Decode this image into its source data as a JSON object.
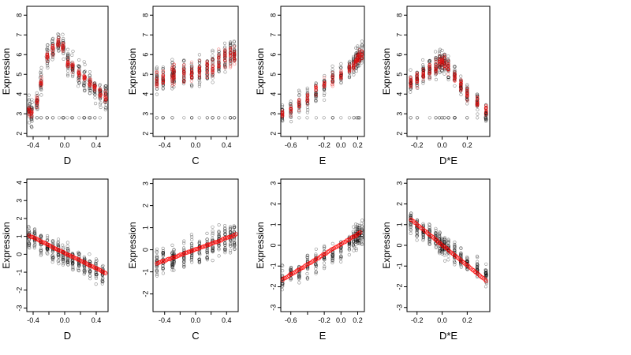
{
  "figure": {
    "background": "#ffffff"
  },
  "colors": {
    "black_points": "#000000",
    "red_points": "#ee1111",
    "fit_line": "#ff0000"
  },
  "chart_data": [
    {
      "type": "scatter",
      "xlabel": "D",
      "ylabel": "Expression",
      "xlim": [
        -0.48,
        0.55
      ],
      "ylim": [
        1.85,
        8.45
      ],
      "xticks": [
        -0.4,
        -0.2,
        0.0,
        0.2,
        0.4
      ],
      "xtick_labels": [
        "-0.4",
        "",
        "0.0",
        "",
        "0.4"
      ],
      "yticks": [
        2,
        3,
        4,
        5,
        6,
        7,
        8
      ],
      "ytick_labels": [
        "2",
        "3",
        "4",
        "5",
        "6",
        "7",
        "8"
      ],
      "series": [
        {
          "kind": "cloud",
          "color": "black",
          "x": [
            -0.45,
            -0.42,
            -0.35,
            -0.3,
            -0.22,
            -0.15,
            -0.08,
            -0.02,
            0.04,
            0.1,
            0.18,
            0.25,
            0.32,
            0.38,
            0.45,
            0.52
          ],
          "y": [
            3.2,
            3.0,
            3.6,
            4.6,
            5.9,
            6.3,
            6.6,
            6.4,
            5.6,
            5.4,
            5.0,
            4.8,
            4.6,
            4.3,
            4.0,
            3.9
          ],
          "spread": 1.3,
          "x_jitter": 0.02,
          "n": 26,
          "floor": 2.8
        },
        {
          "kind": "cloud",
          "color": "red",
          "x": [
            -0.45,
            -0.42,
            -0.35,
            -0.3,
            -0.22,
            -0.15,
            -0.08,
            -0.02,
            0.04,
            0.1,
            0.18,
            0.25,
            0.32,
            0.38,
            0.45,
            0.52
          ],
          "y": [
            3.2,
            3.0,
            3.6,
            4.6,
            5.9,
            6.3,
            6.6,
            6.4,
            5.6,
            5.4,
            5.0,
            4.8,
            4.6,
            4.3,
            4.0,
            3.9
          ],
          "spread": 0.55,
          "x_jitter": 0.02,
          "n": 16,
          "floor": null
        }
      ]
    },
    {
      "type": "scatter",
      "xlabel": "C",
      "ylabel": "Expression",
      "xlim": [
        -0.55,
        0.55
      ],
      "ylim": [
        1.85,
        8.45
      ],
      "xticks": [
        -0.4,
        -0.2,
        0.0,
        0.2,
        0.4
      ],
      "xtick_labels": [
        "-0.4",
        "",
        "0.0",
        "",
        "0.4"
      ],
      "yticks": [
        2,
        3,
        4,
        5,
        6,
        7,
        8
      ],
      "ytick_labels": [
        "2",
        "3",
        "4",
        "5",
        "6",
        "7",
        "8"
      ],
      "series": [
        {
          "kind": "cloud",
          "color": "black",
          "x": [
            -0.5,
            -0.42,
            -0.3,
            -0.28,
            -0.15,
            -0.05,
            0.05,
            0.15,
            0.22,
            0.3,
            0.38,
            0.45,
            0.5
          ],
          "y": [
            4.7,
            4.8,
            4.9,
            5.0,
            5.1,
            5.1,
            5.2,
            5.3,
            5.4,
            5.6,
            5.8,
            6.0,
            6.0
          ],
          "spread": 1.5,
          "x_jitter": 0.008,
          "n": 28,
          "floor": 2.8
        },
        {
          "kind": "cloud",
          "color": "red",
          "x": [
            -0.5,
            -0.42,
            -0.3,
            -0.28,
            -0.15,
            -0.05,
            0.05,
            0.15,
            0.22,
            0.3,
            0.38,
            0.45,
            0.5
          ],
          "y": [
            4.7,
            4.8,
            4.9,
            5.0,
            5.1,
            5.1,
            5.2,
            5.3,
            5.4,
            5.6,
            5.8,
            6.0,
            6.0
          ],
          "spread": 1.0,
          "x_jitter": 0.008,
          "n": 18,
          "floor": null
        }
      ]
    },
    {
      "type": "scatter",
      "xlabel": "E",
      "ylabel": "Expression",
      "xlim": [
        -0.72,
        0.28
      ],
      "ylim": [
        1.85,
        8.45
      ],
      "xticks": [
        -0.6,
        -0.4,
        -0.2,
        0.0,
        0.2
      ],
      "xtick_labels": [
        "-0.6",
        "",
        "-0.2",
        "0.0",
        "0.2"
      ],
      "yticks": [
        2,
        3,
        4,
        5,
        6,
        7,
        8
      ],
      "ytick_labels": [
        "2",
        "3",
        "4",
        "5",
        "6",
        "7",
        "8"
      ],
      "series": [
        {
          "kind": "cloud",
          "color": "black",
          "x": [
            -0.7,
            -0.6,
            -0.5,
            -0.4,
            -0.3,
            -0.2,
            -0.1,
            0.0,
            0.1,
            0.15,
            0.18,
            0.2,
            0.22,
            0.25
          ],
          "y": [
            3.0,
            3.2,
            3.5,
            3.8,
            4.2,
            4.5,
            4.8,
            5.0,
            5.3,
            5.5,
            5.7,
            5.8,
            5.9,
            6.0
          ],
          "spread": 1.2,
          "x_jitter": 0.01,
          "n": 22,
          "floor": 2.8
        },
        {
          "kind": "cloud",
          "color": "red",
          "x": [
            -0.7,
            -0.6,
            -0.5,
            -0.4,
            -0.3,
            -0.2,
            -0.1,
            0.0,
            0.1,
            0.15,
            0.18,
            0.2,
            0.22,
            0.25
          ],
          "y": [
            3.0,
            3.2,
            3.5,
            3.8,
            4.2,
            4.5,
            4.8,
            5.0,
            5.3,
            5.5,
            5.7,
            5.8,
            5.9,
            6.0
          ],
          "spread": 0.65,
          "x_jitter": 0.01,
          "n": 14,
          "floor": null
        }
      ]
    },
    {
      "type": "scatter",
      "xlabel": "D*E",
      "ylabel": "Expression",
      "xlim": [
        -0.28,
        0.38
      ],
      "ylim": [
        1.85,
        8.45
      ],
      "xticks": [
        -0.2,
        0.0,
        0.2
      ],
      "xtick_labels": [
        "-0.2",
        "0.0",
        "0.2"
      ],
      "yticks": [
        2,
        3,
        4,
        5,
        6,
        7,
        8
      ],
      "ytick_labels": [
        "2",
        "3",
        "4",
        "5",
        "6",
        "7",
        "8"
      ],
      "series": [
        {
          "kind": "cloud",
          "color": "black",
          "x": [
            -0.25,
            -0.2,
            -0.15,
            -0.1,
            -0.05,
            -0.02,
            0.0,
            0.02,
            0.05,
            0.1,
            0.15,
            0.2,
            0.28,
            0.35
          ],
          "y": [
            4.6,
            4.8,
            5.0,
            5.2,
            5.4,
            5.6,
            5.7,
            5.6,
            5.3,
            4.9,
            4.5,
            4.0,
            3.6,
            3.2
          ],
          "spread": 1.1,
          "x_jitter": 0.006,
          "n": 30,
          "floor": 2.8
        },
        {
          "kind": "cloud",
          "color": "red",
          "x": [
            -0.25,
            -0.2,
            -0.15,
            -0.1,
            -0.05,
            -0.02,
            0.0,
            0.02,
            0.05,
            0.1,
            0.15,
            0.2,
            0.28,
            0.35
          ],
          "y": [
            4.6,
            4.8,
            5.0,
            5.2,
            5.4,
            5.6,
            5.7,
            5.6,
            5.3,
            4.9,
            4.5,
            4.0,
            3.6,
            3.2
          ],
          "spread": 0.7,
          "x_jitter": 0.006,
          "n": 18,
          "floor": null
        }
      ]
    },
    {
      "type": "scatter",
      "xlabel": "D",
      "ylabel": "Expression",
      "xlim": [
        -0.48,
        0.55
      ],
      "ylim": [
        -3.2,
        4.2
      ],
      "xticks": [
        -0.4,
        -0.2,
        0.0,
        0.2,
        0.4
      ],
      "xtick_labels": [
        "-0.4",
        "",
        "0.0",
        "",
        "0.4"
      ],
      "yticks": [
        -3,
        -2,
        -1,
        0,
        1,
        2,
        3,
        4
      ],
      "ytick_labels": [
        "-3",
        "-2",
        "-1",
        "0",
        "1",
        "2",
        "3",
        "4"
      ],
      "series": [
        {
          "kind": "cloud",
          "color": "black",
          "x": [
            -0.45,
            -0.38,
            -0.3,
            -0.22,
            -0.15,
            -0.08,
            -0.02,
            0.04,
            0.1,
            0.18,
            0.25,
            0.32,
            0.4,
            0.48
          ],
          "y": [
            1.0,
            0.8,
            0.6,
            0.5,
            0.3,
            0.2,
            0.0,
            -0.1,
            -0.3,
            -0.4,
            -0.6,
            -0.7,
            -0.9,
            -1.0
          ],
          "spread": 1.2,
          "x_jitter": 0.015,
          "n": 26,
          "floor": null
        },
        {
          "kind": "line",
          "color": "red",
          "x": [
            -0.45,
            0.52
          ],
          "y": [
            1.05,
            -1.05
          ]
        }
      ]
    },
    {
      "type": "scatter",
      "xlabel": "C",
      "ylabel": "Expression",
      "xlim": [
        -0.55,
        0.55
      ],
      "ylim": [
        -2.8,
        3.2
      ],
      "xticks": [
        -0.4,
        -0.2,
        0.0,
        0.2,
        0.4
      ],
      "xtick_labels": [
        "-0.4",
        "",
        "0.0",
        "",
        "0.4"
      ],
      "yticks": [
        -2,
        -1,
        0,
        1,
        2,
        3
      ],
      "ytick_labels": [
        "-2",
        "-1",
        "0",
        "1",
        "2",
        "3"
      ],
      "series": [
        {
          "kind": "cloud",
          "color": "black",
          "x": [
            -0.5,
            -0.42,
            -0.3,
            -0.28,
            -0.15,
            -0.05,
            0.05,
            0.15,
            0.22,
            0.3,
            0.38,
            0.45,
            0.5
          ],
          "y": [
            -0.6,
            -0.5,
            -0.4,
            -0.35,
            -0.2,
            -0.1,
            0.05,
            0.15,
            0.25,
            0.35,
            0.45,
            0.55,
            0.6
          ],
          "spread": 1.3,
          "x_jitter": 0.008,
          "n": 26,
          "floor": null
        },
        {
          "kind": "line",
          "color": "red",
          "x": [
            -0.5,
            0.52
          ],
          "y": [
            -0.62,
            0.68
          ]
        }
      ]
    },
    {
      "type": "scatter",
      "xlabel": "E",
      "ylabel": "Expression",
      "xlim": [
        -0.72,
        0.28
      ],
      "ylim": [
        -3.2,
        3.2
      ],
      "xticks": [
        -0.6,
        -0.4,
        -0.2,
        0.0,
        0.2
      ],
      "xtick_labels": [
        "-0.6",
        "",
        "-0.2",
        "0.0",
        "0.2"
      ],
      "yticks": [
        -3,
        -2,
        -1,
        0,
        1,
        2,
        3
      ],
      "ytick_labels": [
        "-3",
        "-2",
        "-1",
        "0",
        "1",
        "2",
        "3"
      ],
      "series": [
        {
          "kind": "cloud",
          "color": "black",
          "x": [
            -0.7,
            -0.6,
            -0.5,
            -0.4,
            -0.3,
            -0.2,
            -0.1,
            0.0,
            0.1,
            0.15,
            0.18,
            0.2,
            0.22,
            0.25
          ],
          "y": [
            -1.6,
            -1.4,
            -1.2,
            -1.0,
            -0.8,
            -0.6,
            -0.4,
            -0.2,
            0.1,
            0.3,
            0.4,
            0.5,
            0.5,
            0.6
          ],
          "spread": 1.1,
          "x_jitter": 0.01,
          "n": 22,
          "floor": null
        },
        {
          "kind": "line",
          "color": "red",
          "x": [
            -0.7,
            0.23
          ],
          "y": [
            -1.65,
            0.62
          ]
        }
      ]
    },
    {
      "type": "scatter",
      "xlabel": "D*E",
      "ylabel": "Expression",
      "xlim": [
        -0.28,
        0.38
      ],
      "ylim": [
        -3.2,
        3.2
      ],
      "xticks": [
        -0.2,
        0.0,
        0.2
      ],
      "xtick_labels": [
        "-0.2",
        "0.0",
        "0.2"
      ],
      "yticks": [
        -3,
        -2,
        -1,
        0,
        1,
        2,
        3
      ],
      "ytick_labels": [
        "-3",
        "-2",
        "-1",
        "0",
        "1",
        "2",
        "3"
      ],
      "series": [
        {
          "kind": "cloud",
          "color": "black",
          "x": [
            -0.25,
            -0.2,
            -0.15,
            -0.1,
            -0.05,
            -0.02,
            0.0,
            0.02,
            0.05,
            0.1,
            0.15,
            0.2,
            0.28,
            0.35
          ],
          "y": [
            1.1,
            0.9,
            0.7,
            0.5,
            0.3,
            0.15,
            0.05,
            0.0,
            -0.15,
            -0.4,
            -0.6,
            -0.9,
            -1.2,
            -1.5
          ],
          "spread": 1.0,
          "x_jitter": 0.006,
          "n": 28,
          "floor": null
        },
        {
          "kind": "line",
          "color": "red",
          "x": [
            -0.25,
            0.35
          ],
          "y": [
            1.25,
            -1.7
          ]
        }
      ]
    }
  ]
}
